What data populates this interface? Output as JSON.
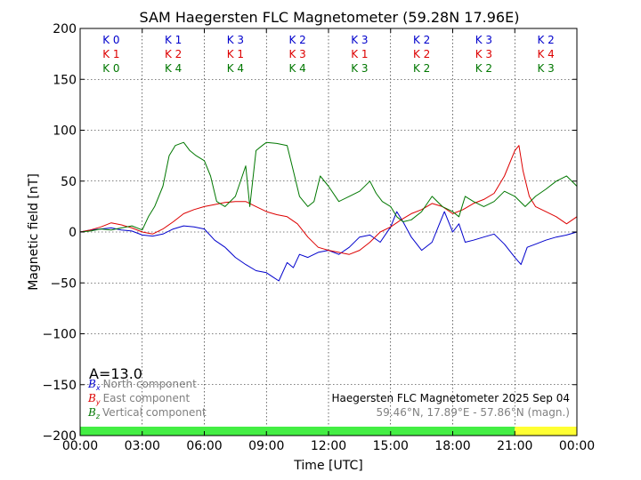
{
  "chart_data": {
    "type": "line",
    "title": "SAM Haegersten FLC Magnetometer (59.28N 17.96E)",
    "xlabel": "Time [UTC]",
    "ylabel": "Magnetic field [nT]",
    "ylim": [
      -200,
      200
    ],
    "xlim_hours": [
      0,
      24
    ],
    "x_tick_labels": [
      "00:00",
      "03:00",
      "06:00",
      "09:00",
      "12:00",
      "15:00",
      "18:00",
      "21:00",
      "00:00"
    ],
    "y_ticks": [
      -200,
      -150,
      -100,
      -50,
      0,
      50,
      100,
      150,
      200
    ],
    "y_tick_labels": [
      "−200",
      "−150",
      "−100",
      "−50",
      "0",
      "50",
      "100",
      "150",
      "200"
    ],
    "grid": true,
    "a_index": "A=13.0",
    "k_indices": [
      {
        "x": "K 0",
        "y": "K 1",
        "z": "K 0"
      },
      {
        "x": "K 1",
        "y": "K 2",
        "z": "K 4"
      },
      {
        "x": "K 3",
        "y": "K 1",
        "z": "K 4"
      },
      {
        "x": "K 2",
        "y": "K 3",
        "z": "K 4"
      },
      {
        "x": "K 3",
        "y": "K 1",
        "z": "K 3"
      },
      {
        "x": "K 2",
        "y": "K 2",
        "z": "K 2"
      },
      {
        "x": "K 3",
        "y": "K 3",
        "z": "K 2"
      },
      {
        "x": "K 2",
        "y": "K 4",
        "z": "K 3"
      }
    ],
    "legend": [
      {
        "symbol": "B",
        "sub": "x",
        "label": "North component",
        "color": "#0000cc"
      },
      {
        "symbol": "B",
        "sub": "y",
        "label": "East component",
        "color": "#dd0000"
      },
      {
        "symbol": "B",
        "sub": "z",
        "label": "Vertical component",
        "color": "#007700"
      }
    ],
    "info_line1": "Haegersten FLC Magnetometer 2025 Sep 04",
    "info_line2": "59.46°N, 17.89°E - 57.86°N (magn.)",
    "status_bar": [
      {
        "from": 0,
        "to": 21,
        "color": "#44ee44"
      },
      {
        "from": 21,
        "to": 24,
        "color": "#ffff33"
      }
    ],
    "series": [
      {
        "name": "North component",
        "color": "#0000cc",
        "x": [
          0,
          0.5,
          1,
          1.5,
          2,
          2.5,
          3,
          3.5,
          4,
          4.5,
          5,
          5.5,
          6,
          6.5,
          7,
          7.5,
          8,
          8.5,
          9,
          9.3,
          9.6,
          10,
          10.3,
          10.6,
          11,
          11.5,
          12,
          12.5,
          13,
          13.5,
          14,
          14.5,
          15,
          15.3,
          15.6,
          16,
          16.5,
          17,
          17.3,
          17.6,
          18,
          18.3,
          18.6,
          19,
          19.5,
          20,
          20.5,
          21,
          21.3,
          21.6,
          22,
          22.5,
          23,
          23.5,
          24
        ],
        "values": [
          0,
          2,
          3,
          4,
          2,
          1,
          -3,
          -4,
          -2,
          3,
          6,
          5,
          3,
          -8,
          -15,
          -25,
          -32,
          -38,
          -40,
          -44,
          -48,
          -30,
          -35,
          -22,
          -25,
          -20,
          -18,
          -22,
          -15,
          -5,
          -3,
          -10,
          5,
          20,
          10,
          -5,
          -18,
          -10,
          5,
          20,
          0,
          8,
          -10,
          -8,
          -5,
          -2,
          -12,
          -25,
          -32,
          -15,
          -12,
          -8,
          -5,
          -3,
          0
        ]
      },
      {
        "name": "East component",
        "color": "#dd0000",
        "x": [
          0,
          0.5,
          1,
          1.5,
          2,
          2.5,
          3,
          3.5,
          4,
          4.5,
          5,
          5.5,
          6,
          6.5,
          7,
          7.5,
          8,
          8.5,
          9,
          9.5,
          10,
          10.5,
          11,
          11.5,
          12,
          12.5,
          13,
          13.5,
          14,
          14.5,
          15,
          15.5,
          16,
          16.5,
          17,
          17.5,
          18,
          18.5,
          19,
          19.5,
          20,
          20.5,
          21,
          21.2,
          21.4,
          21.7,
          22,
          22.5,
          23,
          23.5,
          24
        ],
        "values": [
          0,
          2,
          5,
          9,
          7,
          4,
          0,
          -2,
          3,
          10,
          18,
          22,
          25,
          27,
          29,
          30,
          30,
          25,
          20,
          17,
          15,
          8,
          -5,
          -15,
          -18,
          -20,
          -22,
          -18,
          -10,
          0,
          5,
          12,
          18,
          22,
          28,
          25,
          18,
          22,
          28,
          32,
          38,
          55,
          80,
          85,
          60,
          35,
          25,
          20,
          15,
          8,
          15
        ]
      },
      {
        "name": "Vertical component",
        "color": "#007700",
        "x": [
          0,
          0.5,
          1,
          1.5,
          2,
          2.5,
          3,
          3.3,
          3.6,
          4,
          4.3,
          4.6,
          5,
          5.3,
          5.6,
          6,
          6.3,
          6.6,
          7,
          7.5,
          8,
          8.2,
          8.5,
          8.8,
          9,
          9.5,
          10,
          10.3,
          10.6,
          11,
          11.3,
          11.6,
          12,
          12.5,
          13,
          13.5,
          14,
          14.3,
          14.6,
          15,
          15.3,
          15.6,
          16,
          16.5,
          17,
          17.5,
          18,
          18.3,
          18.6,
          19,
          19.5,
          20,
          20.5,
          21,
          21.5,
          22,
          22.5,
          23,
          23.5,
          24
        ],
        "values": [
          0,
          1,
          3,
          2,
          4,
          6,
          2,
          15,
          25,
          45,
          75,
          85,
          88,
          80,
          75,
          70,
          55,
          30,
          25,
          35,
          65,
          25,
          80,
          85,
          88,
          87,
          85,
          60,
          35,
          25,
          30,
          55,
          45,
          30,
          35,
          40,
          50,
          38,
          30,
          25,
          15,
          10,
          12,
          20,
          35,
          25,
          20,
          15,
          35,
          30,
          25,
          30,
          40,
          35,
          25,
          35,
          42,
          50,
          55,
          45
        ]
      }
    ]
  }
}
